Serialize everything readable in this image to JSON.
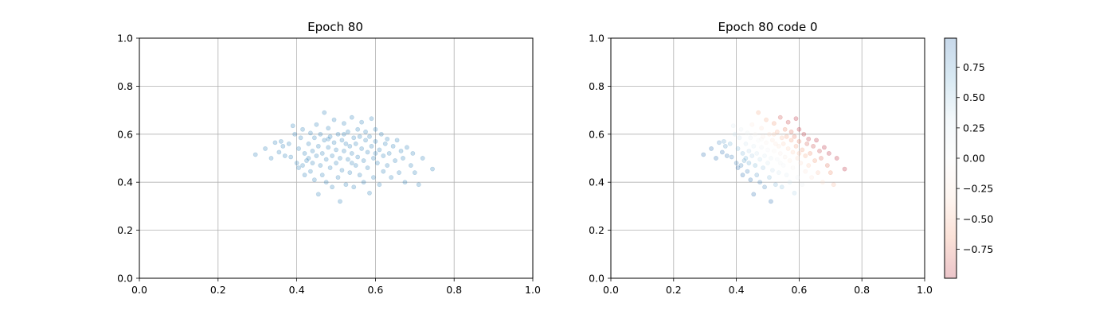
{
  "chart_data": [
    {
      "type": "scatter",
      "title": "Epoch 80",
      "xlabel": "",
      "ylabel": "",
      "xlim": [
        0,
        1
      ],
      "ylim": [
        0,
        1
      ],
      "grid": true,
      "color": "#1f77b4",
      "alpha": 0.25,
      "x_ticks": [
        "0.0",
        "0.2",
        "0.4",
        "0.6",
        "0.8",
        "1.0"
      ],
      "y_ticks": [
        "0.0",
        "0.2",
        "0.4",
        "0.6",
        "0.8",
        "1.0"
      ],
      "distribution_note": "approximately 400 points; values below are a representative reading of the cloud",
      "points": [
        [
          0.295,
          0.515
        ],
        [
          0.32,
          0.54
        ],
        [
          0.335,
          0.5
        ],
        [
          0.345,
          0.565
        ],
        [
          0.355,
          0.525
        ],
        [
          0.365,
          0.55
        ],
        [
          0.37,
          0.51
        ],
        [
          0.38,
          0.56
        ],
        [
          0.385,
          0.505
        ],
        [
          0.39,
          0.635
        ],
        [
          0.395,
          0.6
        ],
        [
          0.4,
          0.48
        ],
        [
          0.405,
          0.54
        ],
        [
          0.405,
          0.46
        ],
        [
          0.41,
          0.585
        ],
        [
          0.415,
          0.47
        ],
        [
          0.415,
          0.62
        ],
        [
          0.42,
          0.52
        ],
        [
          0.42,
          0.43
        ],
        [
          0.425,
          0.49
        ],
        [
          0.43,
          0.56
        ],
        [
          0.43,
          0.5
        ],
        [
          0.435,
          0.605
        ],
        [
          0.435,
          0.445
        ],
        [
          0.44,
          0.53
        ],
        [
          0.44,
          0.48
        ],
        [
          0.445,
          0.585
        ],
        [
          0.445,
          0.41
        ],
        [
          0.45,
          0.64
        ],
        [
          0.45,
          0.51
        ],
        [
          0.455,
          0.35
        ],
        [
          0.455,
          0.55
        ],
        [
          0.46,
          0.47
        ],
        [
          0.46,
          0.6
        ],
        [
          0.465,
          0.52
        ],
        [
          0.465,
          0.43
        ],
        [
          0.47,
          0.69
        ],
        [
          0.47,
          0.575
        ],
        [
          0.475,
          0.495
        ],
        [
          0.475,
          0.4
        ],
        [
          0.48,
          0.545
        ],
        [
          0.48,
          0.625
        ],
        [
          0.485,
          0.46
        ],
        [
          0.485,
          0.59
        ],
        [
          0.49,
          0.51
        ],
        [
          0.49,
          0.38
        ],
        [
          0.495,
          0.66
        ],
        [
          0.495,
          0.565
        ],
        [
          0.5,
          0.48
        ],
        [
          0.5,
          0.535
        ],
        [
          0.505,
          0.42
        ],
        [
          0.505,
          0.6
        ],
        [
          0.51,
          0.32
        ],
        [
          0.51,
          0.5
        ],
        [
          0.515,
          0.575
        ],
        [
          0.515,
          0.45
        ],
        [
          0.52,
          0.645
        ],
        [
          0.52,
          0.53
        ],
        [
          0.525,
          0.39
        ],
        [
          0.525,
          0.56
        ],
        [
          0.53,
          0.495
        ],
        [
          0.53,
          0.61
        ],
        [
          0.535,
          0.44
        ],
        [
          0.535,
          0.55
        ],
        [
          0.54,
          0.67
        ],
        [
          0.54,
          0.52
        ],
        [
          0.545,
          0.585
        ],
        [
          0.545,
          0.38
        ],
        [
          0.55,
          0.47
        ],
        [
          0.55,
          0.56
        ],
        [
          0.555,
          0.62
        ],
        [
          0.555,
          0.505
        ],
        [
          0.56,
          0.43
        ],
        [
          0.56,
          0.59
        ],
        [
          0.565,
          0.54
        ],
        [
          0.565,
          0.65
        ],
        [
          0.57,
          0.49
        ],
        [
          0.57,
          0.4
        ],
        [
          0.575,
          0.575
        ],
        [
          0.575,
          0.61
        ],
        [
          0.58,
          0.525
        ],
        [
          0.58,
          0.46
        ],
        [
          0.585,
          0.355
        ],
        [
          0.585,
          0.59
        ],
        [
          0.59,
          0.55
        ],
        [
          0.59,
          0.665
        ],
        [
          0.595,
          0.5
        ],
        [
          0.595,
          0.42
        ],
        [
          0.6,
          0.57
        ],
        [
          0.6,
          0.62
        ],
        [
          0.605,
          0.48
        ],
        [
          0.61,
          0.535
        ],
        [
          0.61,
          0.39
        ],
        [
          0.615,
          0.6
        ],
        [
          0.62,
          0.51
        ],
        [
          0.62,
          0.445
        ],
        [
          0.625,
          0.56
        ],
        [
          0.63,
          0.47
        ],
        [
          0.63,
          0.58
        ],
        [
          0.635,
          0.52
        ],
        [
          0.64,
          0.42
        ],
        [
          0.645,
          0.55
        ],
        [
          0.65,
          0.49
        ],
        [
          0.655,
          0.575
        ],
        [
          0.66,
          0.44
        ],
        [
          0.665,
          0.53
        ],
        [
          0.67,
          0.5
        ],
        [
          0.675,
          0.4
        ],
        [
          0.68,
          0.545
        ],
        [
          0.69,
          0.47
        ],
        [
          0.695,
          0.52
        ],
        [
          0.7,
          0.44
        ],
        [
          0.71,
          0.39
        ],
        [
          0.72,
          0.5
        ],
        [
          0.745,
          0.455
        ],
        [
          0.36,
          0.57
        ],
        [
          0.52,
          0.6
        ],
        [
          0.6,
          0.52
        ],
        [
          0.54,
          0.48
        ],
        [
          0.48,
          0.58
        ]
      ]
    },
    {
      "type": "scatter",
      "title": "Epoch 80 code 0",
      "xlabel": "",
      "ylabel": "",
      "xlim": [
        0,
        1
      ],
      "ylim": [
        0,
        1
      ],
      "grid": true,
      "alpha": 0.25,
      "colormap": "RdBu",
      "x_ticks": [
        "0.0",
        "0.2",
        "0.4",
        "0.6",
        "0.8",
        "1.0"
      ],
      "y_ticks": [
        "0.0",
        "0.2",
        "0.4",
        "0.6",
        "0.8",
        "1.0"
      ],
      "colorbar": {
        "ticks": [
          "0.75",
          "0.50",
          "0.25",
          "0.00",
          "−0.25",
          "−0.50",
          "−0.75"
        ],
        "tick_values": [
          0.75,
          0.5,
          0.25,
          0.0,
          -0.25,
          -0.5,
          -0.75
        ],
        "range": [
          -0.99,
          0.99
        ],
        "colors": [
          "#b2182b",
          "#ef8a62",
          "#fddbc7",
          "#f7f7f7",
          "#d1e5f0",
          "#67a9cf",
          "#2166ac"
        ]
      },
      "codes_note": "color encodes code value in [-1, 1]; left side of cloud mostly positive (blue), upper/right region mostly negative (red)"
    }
  ]
}
